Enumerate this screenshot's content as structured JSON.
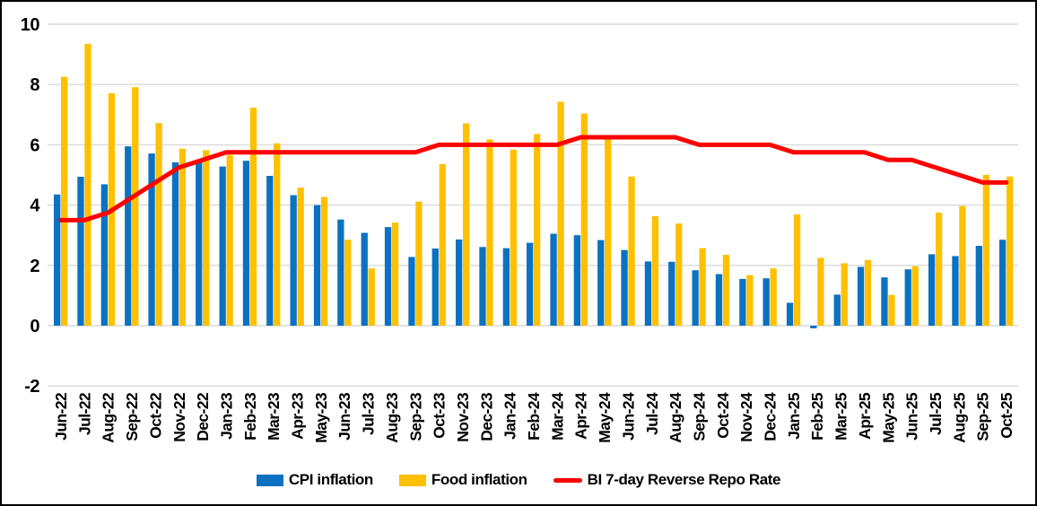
{
  "chart_data": {
    "type": "bar",
    "subtype": "bar-line-combo",
    "title": "",
    "xlabel": "",
    "ylabel": "",
    "ylim": [
      -2,
      10
    ],
    "y_ticks": [
      10,
      8,
      6,
      4,
      2,
      0,
      -2
    ],
    "grid": "horizontal",
    "gridline_color": "#D9D9D9",
    "legend_position": "bottom",
    "categories": [
      "Jun-22",
      "Jul-22",
      "Aug-22",
      "Sep-22",
      "Oct-22",
      "Nov-22",
      "Dec-22",
      "Jan-23",
      "Feb-23",
      "Mar-23",
      "Apr-23",
      "May-23",
      "Jun-23",
      "Jul-23",
      "Aug-23",
      "Sep-23",
      "Oct-23",
      "Nov-23",
      "Dec-23",
      "Jan-24",
      "Feb-24",
      "Mar-24",
      "Apr-24",
      "May-24",
      "Jun-24",
      "Jul-24",
      "Aug-24",
      "Sep-24",
      "Oct-24",
      "Nov-24",
      "Dec-24",
      "Jan-25",
      "Feb-25",
      "Mar-25",
      "Apr-25",
      "May-25",
      "Jun-25",
      "Jul-25",
      "Aug-25",
      "Sep-25",
      "Oct-25"
    ],
    "series": [
      {
        "name": "CPI inflation",
        "type": "bar",
        "color": "#0B72C1",
        "values": [
          4.35,
          4.94,
          4.69,
          5.95,
          5.71,
          5.42,
          5.51,
          5.28,
          5.47,
          4.97,
          4.33,
          4.0,
          3.52,
          3.08,
          3.27,
          2.28,
          2.56,
          2.86,
          2.61,
          2.57,
          2.75,
          3.05,
          3.0,
          2.84,
          2.51,
          2.13,
          2.12,
          1.84,
          1.71,
          1.55,
          1.57,
          0.76,
          -0.09,
          1.03,
          1.95,
          1.6,
          1.87,
          2.37,
          2.31,
          2.65,
          2.85
        ]
      },
      {
        "name": "Food inflation",
        "type": "bar",
        "color": "#FFC000",
        "values": [
          8.26,
          9.35,
          7.71,
          7.91,
          6.72,
          5.87,
          5.82,
          5.66,
          7.23,
          6.05,
          4.58,
          4.27,
          2.85,
          1.9,
          3.42,
          4.12,
          5.36,
          6.71,
          6.18,
          5.84,
          6.36,
          7.43,
          7.04,
          6.18,
          4.95,
          3.63,
          3.39,
          2.57,
          2.35,
          1.68,
          1.9,
          3.69,
          2.25,
          2.07,
          2.18,
          1.02,
          1.97,
          3.75,
          3.97,
          5.0,
          4.95
        ]
      },
      {
        "name": "BI 7-day Reverse Repo Rate",
        "type": "line",
        "color": "#FF0000",
        "values": [
          3.5,
          3.5,
          3.75,
          4.25,
          4.75,
          5.25,
          5.5,
          5.75,
          5.75,
          5.75,
          5.75,
          5.75,
          5.75,
          5.75,
          5.75,
          5.75,
          6.0,
          6.0,
          6.0,
          6.0,
          6.0,
          6.0,
          6.25,
          6.25,
          6.25,
          6.25,
          6.25,
          6.0,
          6.0,
          6.0,
          6.0,
          5.75,
          5.75,
          5.75,
          5.75,
          5.5,
          5.5,
          5.25,
          5.0,
          4.75,
          4.75
        ]
      }
    ]
  },
  "colors": {
    "background": "#FFFFFF",
    "border": "#000000",
    "text": "#000000",
    "gridline": "#D9D9D9"
  }
}
